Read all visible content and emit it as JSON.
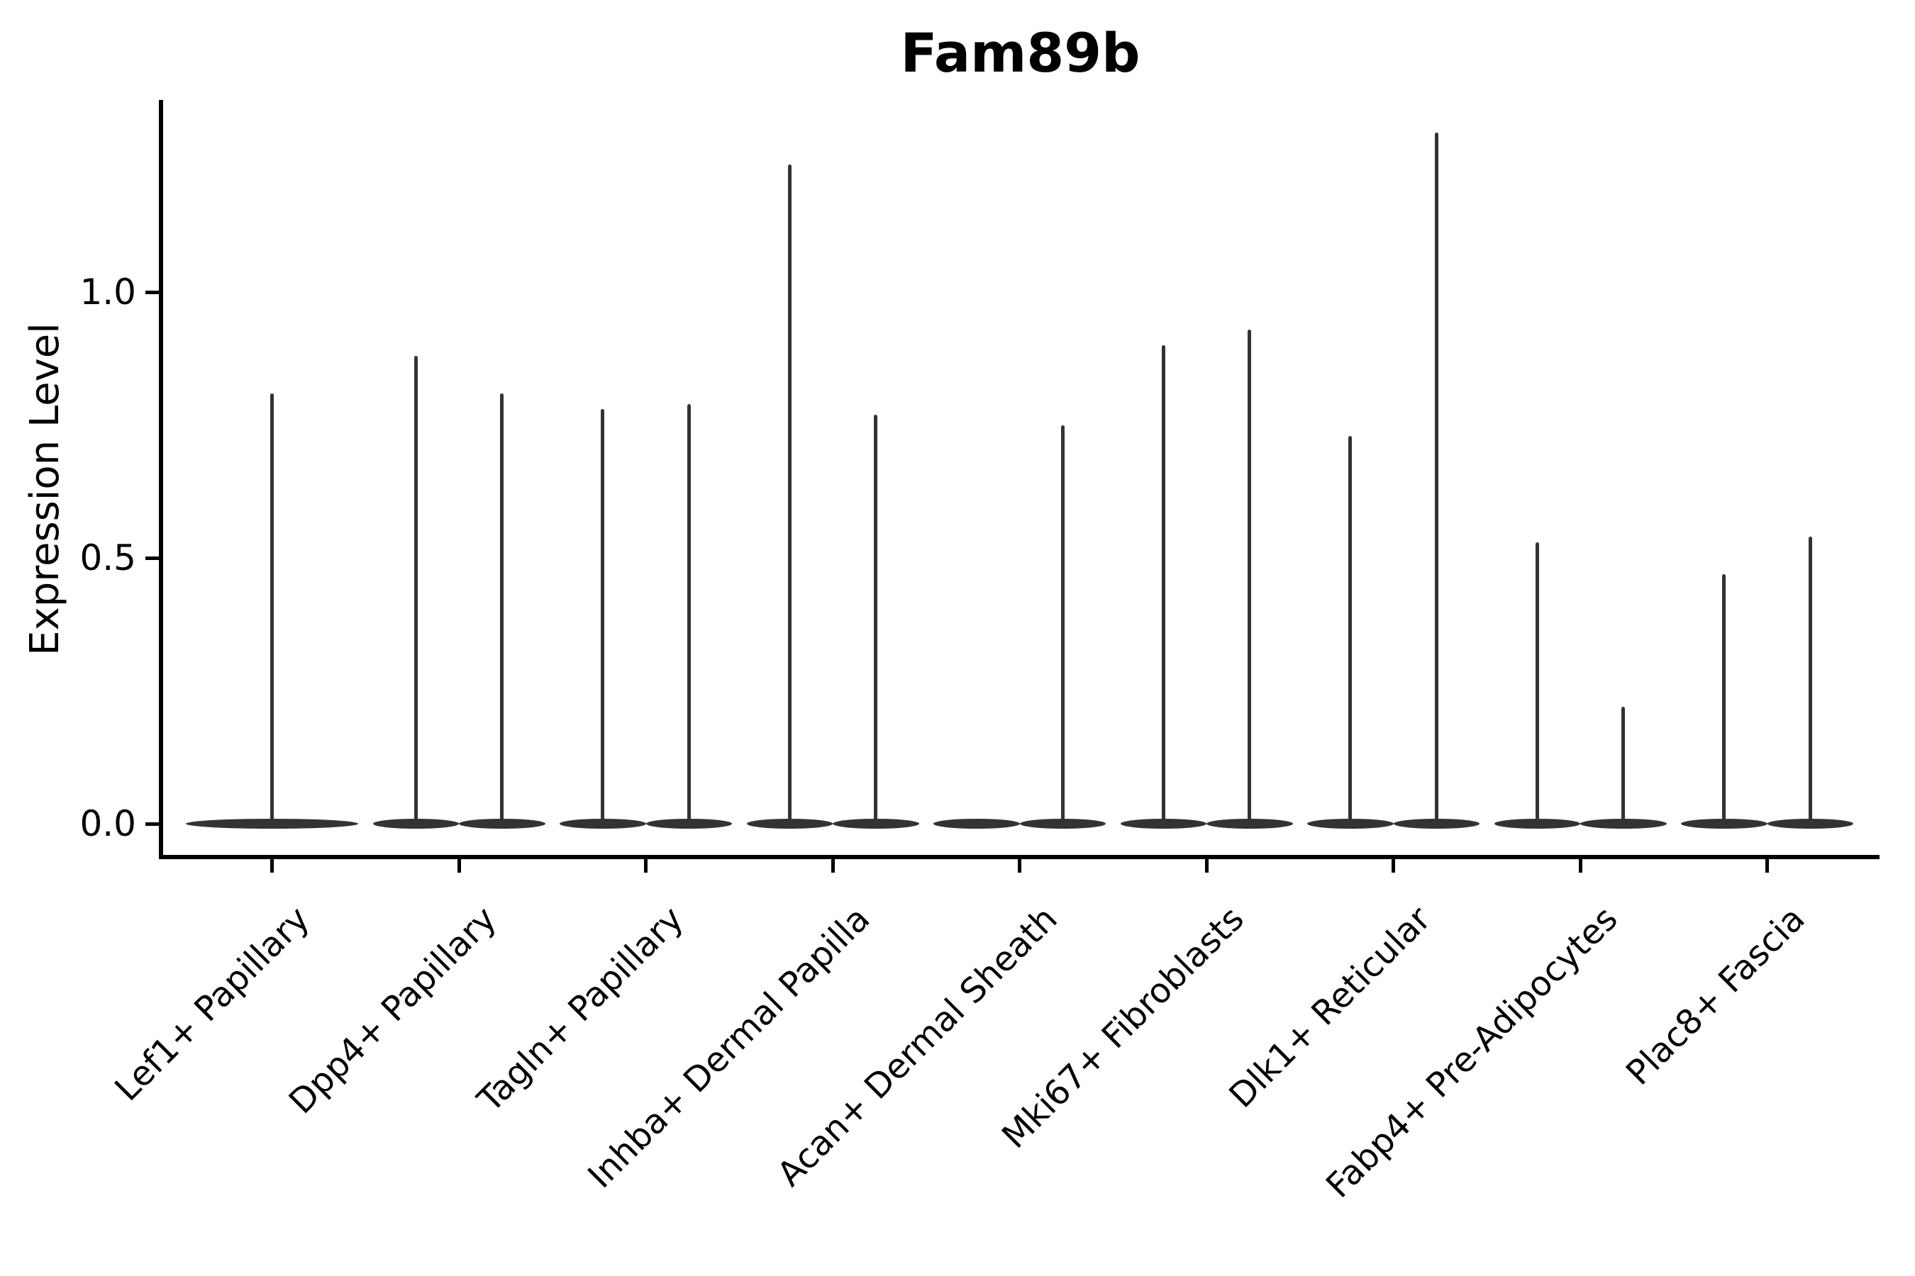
{
  "title": "Fam89b",
  "axes": {
    "y_label": "Expression Level",
    "y_tick_labels": [
      "0.0",
      "0.5",
      "1.0"
    ]
  },
  "colors": {
    "violin": "#333333",
    "axis": "#000000",
    "text": "#000000",
    "background": "#ffffff"
  },
  "chart_data": {
    "type": "violin",
    "title": "Fam89b",
    "xlabel": "",
    "ylabel": "Expression Level",
    "ylim": [
      -0.063,
      1.36
    ],
    "y_ticks": [
      {
        "label": "0.0",
        "value": 0.0
      },
      {
        "label": "0.5",
        "value": 0.5
      },
      {
        "label": "1.0",
        "value": 1.0
      }
    ],
    "grid": false,
    "legend": "none",
    "categories": [
      "Lef1+ Papillary",
      "Dpp4+ Papillary",
      "Tagln+ Papillary",
      "Inhba+ Dermal Papilla",
      "Acan+ Dermal Sheath",
      "Mki67+ Fibroblasts",
      "Dlk1+ Reticular",
      "Fabp4+ Pre-Adipocytes",
      "Plac8+ Fascia"
    ],
    "violin_description": "Each violin collapses to a wide flat mass at expression 0 with a thin vertical tail reaching the maximum expression value; most categories contain two side-by-side violins, Lef1+ Papillary has a single full-width violin, and the left violin of Acan+ Dermal Sheath has no tail (all zeros).",
    "violins": [
      {
        "category": "Lef1+ Papillary",
        "position": "full",
        "zero_mass": true,
        "max": 0.81
      },
      {
        "category": "Dpp4+ Papillary",
        "position": "left",
        "zero_mass": true,
        "max": 0.88
      },
      {
        "category": "Dpp4+ Papillary",
        "position": "right",
        "zero_mass": true,
        "max": 0.81
      },
      {
        "category": "Tagln+ Papillary",
        "position": "left",
        "zero_mass": true,
        "max": 0.78
      },
      {
        "category": "Tagln+ Papillary",
        "position": "right",
        "zero_mass": true,
        "max": 0.79
      },
      {
        "category": "Inhba+ Dermal Papilla",
        "position": "left",
        "zero_mass": true,
        "max": 1.24
      },
      {
        "category": "Inhba+ Dermal Papilla",
        "position": "right",
        "zero_mass": true,
        "max": 0.77
      },
      {
        "category": "Acan+ Dermal Sheath",
        "position": "left",
        "zero_mass": true,
        "max": 0.0
      },
      {
        "category": "Acan+ Dermal Sheath",
        "position": "right",
        "zero_mass": true,
        "max": 0.75
      },
      {
        "category": "Mki67+ Fibroblasts",
        "position": "left",
        "zero_mass": true,
        "max": 0.9
      },
      {
        "category": "Mki67+ Fibroblasts",
        "position": "right",
        "zero_mass": true,
        "max": 0.93
      },
      {
        "category": "Dlk1+ Reticular",
        "position": "left",
        "zero_mass": true,
        "max": 0.73
      },
      {
        "category": "Dlk1+ Reticular",
        "position": "right",
        "zero_mass": true,
        "max": 1.3
      },
      {
        "category": "Fabp4+ Pre-Adipocytes",
        "position": "left",
        "zero_mass": true,
        "max": 0.53
      },
      {
        "category": "Fabp4+ Pre-Adipocytes",
        "position": "right",
        "zero_mass": true,
        "max": 0.22
      },
      {
        "category": "Plac8+ Fascia",
        "position": "left",
        "zero_mass": true,
        "max": 0.47
      },
      {
        "category": "Plac8+ Fascia",
        "position": "right",
        "zero_mass": true,
        "max": 0.54
      }
    ]
  }
}
